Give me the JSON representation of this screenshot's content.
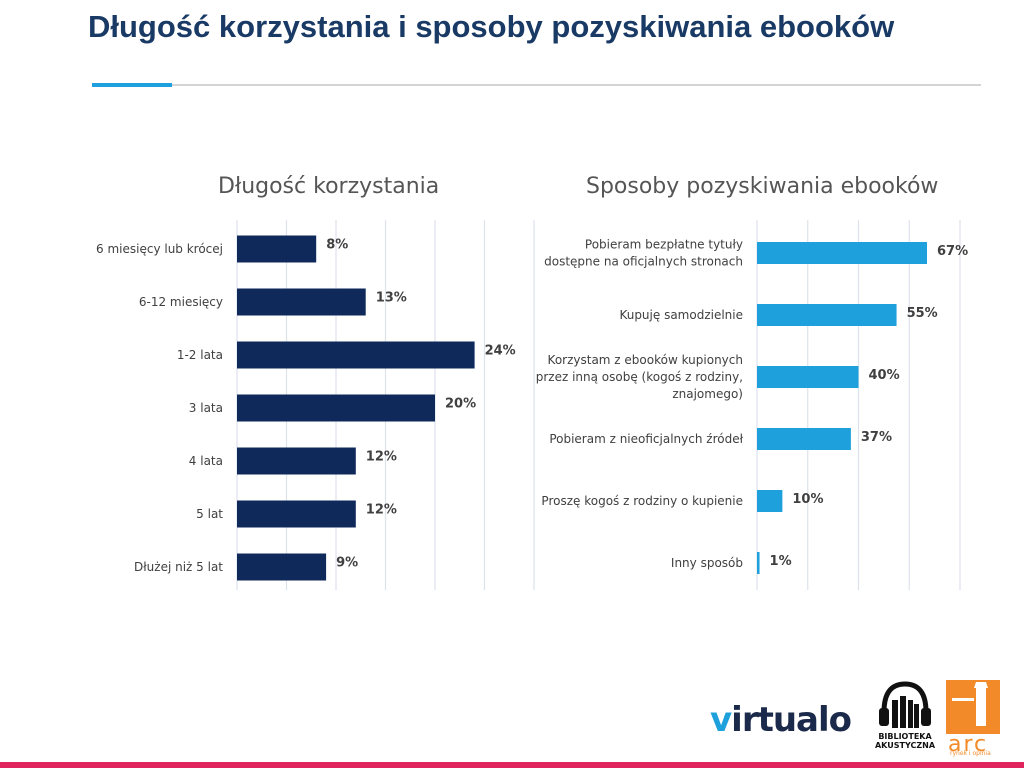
{
  "slide": {
    "title": "Długość korzystania i sposoby pozyskiwania ebooków"
  },
  "chart_data": [
    {
      "type": "bar",
      "orientation": "horizontal",
      "title": "Długość korzystania",
      "categories": [
        "6 miesięcy lub krócej",
        "6-12 miesięcy",
        "1-2 lata",
        "3 lata",
        "4 lata",
        "5 lat",
        "Dłużej niż 5 lat"
      ],
      "values": [
        8,
        13,
        24,
        20,
        12,
        12,
        9
      ],
      "value_labels": [
        "8%",
        "13%",
        "24%",
        "20%",
        "12%",
        "12%",
        "9%"
      ],
      "xlim": [
        0,
        30
      ],
      "grid": true,
      "bar_color": "#0f2a5a"
    },
    {
      "type": "bar",
      "orientation": "horizontal",
      "title": "Sposoby pozyskiwania ebooków",
      "categories": [
        [
          "Pobieram bezpłatne tytuły",
          "dostępne na oficjalnych stronach"
        ],
        [
          "Kupuję samodzielnie"
        ],
        [
          "Korzystam z ebooków kupionych",
          "przez inną osobę (kogoś z rodziny,",
          "znajomego)"
        ],
        [
          "Pobieram z nieoficjalnych źródeł"
        ],
        [
          "Proszę kogoś z rodziny o kupienie"
        ],
        [
          "Inny sposób"
        ]
      ],
      "values": [
        67,
        55,
        40,
        37,
        10,
        1
      ],
      "value_labels": [
        "67%",
        "55%",
        "40%",
        "37%",
        "10%",
        "1%"
      ],
      "xlim": [
        0,
        80
      ],
      "grid": true,
      "bar_color": "#1ea0dc"
    }
  ],
  "logos": {
    "virtualo_prefix": "v",
    "virtualo_rest": "irtualo",
    "biblioteka_line1": "BIBLIOTEKA",
    "biblioteka_line2": "AKUSTYCZNA",
    "arc_name": "arc",
    "arc_sub": "rynek i opinia"
  },
  "colors": {
    "title": "#1a3a66",
    "accent": "#1ea0dc",
    "footer": "#e0245e",
    "arc": "#f28a2a"
  }
}
